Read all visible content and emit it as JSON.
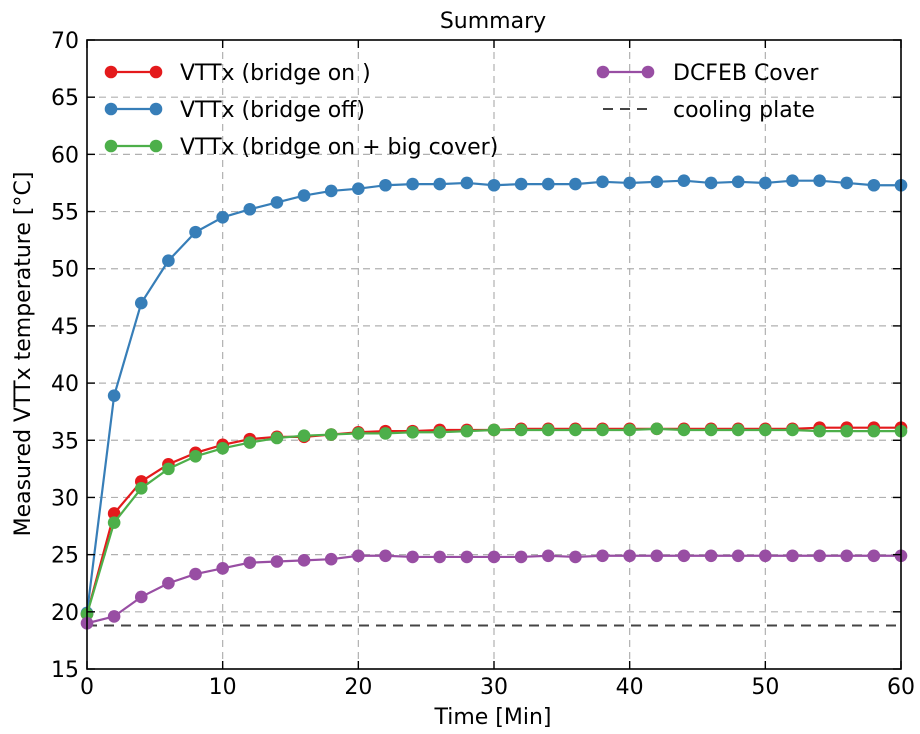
{
  "chart_data": {
    "type": "line",
    "title": "Summary",
    "xlabel": "Time [Min]",
    "ylabel": "Measured VTTx temperature [°C]",
    "xlim": [
      0,
      60
    ],
    "ylim": [
      15,
      70
    ],
    "xticks": [
      0,
      10,
      20,
      30,
      40,
      50,
      60
    ],
    "yticks": [
      15,
      20,
      25,
      30,
      35,
      40,
      45,
      50,
      55,
      60,
      65,
      70
    ],
    "grid": true,
    "legend_position": "top",
    "x": [
      0,
      2,
      4,
      6,
      8,
      10,
      12,
      14,
      16,
      18,
      20,
      22,
      24,
      26,
      28,
      30,
      32,
      34,
      36,
      38,
      40,
      42,
      44,
      46,
      48,
      50,
      52,
      54,
      56,
      58,
      60
    ],
    "series": [
      {
        "name": "VTTx (bridge on )",
        "color": "#e41a1c",
        "values": [
          19.8,
          28.6,
          31.4,
          32.9,
          33.9,
          34.6,
          35.1,
          35.3,
          35.3,
          35.5,
          35.7,
          35.8,
          35.8,
          35.9,
          35.9,
          35.9,
          36.0,
          36.0,
          36.0,
          36.0,
          36.0,
          36.0,
          36.0,
          36.0,
          36.0,
          36.0,
          36.0,
          36.1,
          36.1,
          36.1,
          36.1
        ]
      },
      {
        "name": "VTTx (bridge off)",
        "color": "#377eb8",
        "values": [
          19.9,
          38.9,
          47.0,
          50.7,
          53.2,
          54.5,
          55.2,
          55.8,
          56.4,
          56.8,
          57.0,
          57.3,
          57.4,
          57.4,
          57.5,
          57.3,
          57.4,
          57.4,
          57.4,
          57.6,
          57.5,
          57.6,
          57.7,
          57.5,
          57.6,
          57.5,
          57.7,
          57.7,
          57.5,
          57.3,
          57.3
        ]
      },
      {
        "name": "VTTx (bridge on + big cover)",
        "color": "#4daf4a",
        "values": [
          19.8,
          27.8,
          30.8,
          32.5,
          33.6,
          34.3,
          34.8,
          35.2,
          35.4,
          35.5,
          35.6,
          35.6,
          35.7,
          35.7,
          35.8,
          35.9,
          35.9,
          35.9,
          35.9,
          35.9,
          35.9,
          36.0,
          35.9,
          35.9,
          35.9,
          35.9,
          35.9,
          35.8,
          35.8,
          35.8,
          35.8
        ]
      },
      {
        "name": "DCFEB Cover",
        "color": "#984ea3",
        "values": [
          19.0,
          19.6,
          21.3,
          22.5,
          23.3,
          23.8,
          24.3,
          24.4,
          24.5,
          24.6,
          24.9,
          24.9,
          24.8,
          24.8,
          24.8,
          24.8,
          24.8,
          24.9,
          24.8,
          24.9,
          24.9,
          24.9,
          24.9,
          24.9,
          24.9,
          24.9,
          24.9,
          24.9,
          24.9,
          24.9,
          24.9
        ]
      }
    ],
    "reference_lines": [
      {
        "name": "cooling plate",
        "y": 18.8,
        "color": "#444444",
        "style": "dashed"
      }
    ],
    "legend": {
      "left": [
        "VTTx (bridge on )",
        "VTTx (bridge off)",
        "VTTx (bridge on + big cover)"
      ],
      "right": [
        "DCFEB Cover",
        "cooling plate"
      ]
    }
  }
}
